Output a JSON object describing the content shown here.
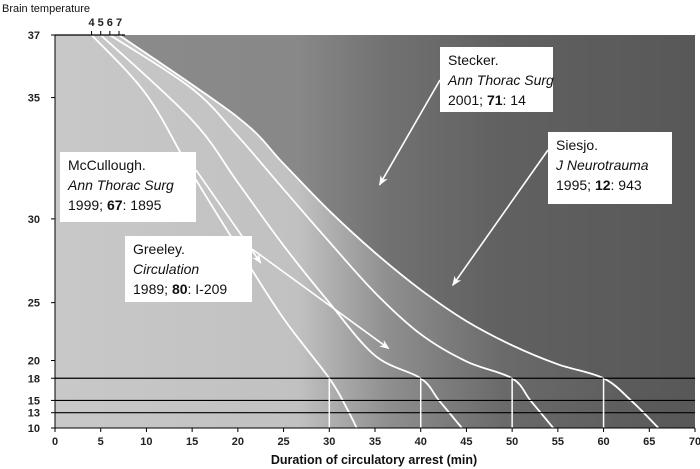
{
  "chart_data": {
    "type": "line",
    "title": "",
    "xlabel": "Duration of circulatory arrest (min)",
    "ylabel": "Brain temperature",
    "xlim": [
      0,
      70
    ],
    "ylim": [
      10,
      37
    ],
    "y_scale": "exponential (temperature axis compressed toward low values)",
    "x_ticks": [
      0,
      5,
      10,
      15,
      20,
      25,
      30,
      35,
      40,
      45,
      50,
      55,
      60,
      65,
      70
    ],
    "y_ticks": [
      10,
      13,
      15,
      18,
      20,
      25,
      30,
      35,
      37
    ],
    "top_ticks": [
      "4",
      "5",
      "6",
      "7"
    ],
    "top_tick_x": [
      4,
      5,
      6,
      7
    ],
    "horizontal_reference_lines": [
      18,
      15,
      13
    ],
    "vertical_reference_lines": [
      {
        "x": 30,
        "from_y": 10,
        "to_y": 18
      },
      {
        "x": 40,
        "from_y": 10,
        "to_y": 18
      },
      {
        "x": 50,
        "from_y": 10,
        "to_y": 18
      },
      {
        "x": 60,
        "from_y": 10,
        "to_y": 18
      }
    ],
    "series": [
      {
        "values": [
          [
            4,
            37
          ],
          [
            10,
            35.1
          ],
          [
            15,
            32.1
          ],
          [
            20,
            28.5
          ],
          [
            25,
            23.8
          ],
          [
            30,
            18
          ],
          [
            32,
            13.5
          ],
          [
            33,
            10
          ]
        ]
      },
      {
        "values": [
          [
            5,
            37
          ],
          [
            15,
            34.2
          ],
          [
            20,
            31.7
          ],
          [
            25,
            28.6
          ],
          [
            30,
            25
          ],
          [
            35,
            20.5
          ],
          [
            40,
            18
          ],
          [
            42,
            15
          ],
          [
            44.5,
            10
          ]
        ]
      },
      {
        "values": [
          [
            6,
            37
          ],
          [
            15,
            35.3
          ],
          [
            20,
            33.6
          ],
          [
            25,
            31.4
          ],
          [
            30,
            28.8
          ],
          [
            35,
            25.7
          ],
          [
            40,
            22.5
          ],
          [
            45,
            19.9
          ],
          [
            50,
            18
          ],
          [
            52,
            15
          ],
          [
            54.5,
            10
          ]
        ]
      },
      {
        "values": [
          [
            7,
            37
          ],
          [
            20,
            34.3
          ],
          [
            25,
            32.5
          ],
          [
            30,
            30.4
          ],
          [
            35,
            28.2
          ],
          [
            40,
            25.9
          ],
          [
            45,
            23.6
          ],
          [
            50,
            21.5
          ],
          [
            55,
            19.6
          ],
          [
            60,
            18
          ],
          [
            63,
            15
          ],
          [
            66,
            10
          ]
        ]
      }
    ],
    "annotations": [
      {
        "line1": "Stecker.",
        "line2": "Ann Thorac Surg",
        "line3_pre": "2001; ",
        "line3_bold": "71",
        "line3_post": ": 14",
        "arrow_to": [
          35.5,
          31.6
        ]
      },
      {
        "line1": "Siesjo.",
        "line2": "J Neurotrauma",
        "line3_pre": "1995; ",
        "line3_bold": "12",
        "line3_post": ": 943",
        "arrow_to": [
          43.5,
          26.2
        ]
      },
      {
        "line1": "McCullough.",
        "line2": "Ann Thorac Surg",
        "line3_pre": "1999; ",
        "line3_bold": "67",
        "line3_post": ": 1895",
        "arrow_to": [
          22.5,
          27.6
        ]
      },
      {
        "line1": "Greeley.",
        "line2": "Circulation",
        "line3_pre": "1989; ",
        "line3_bold": "80",
        "line3_post": ": I-209",
        "arrow_to": [
          36.5,
          21.2
        ]
      }
    ],
    "grid": false,
    "legend": "none",
    "colors": {
      "curve": "#ffffff",
      "reference_line": "#000000",
      "left_region": "#c8c8c8",
      "right_region": "#5a5a5a",
      "annotation_box": "#ffffff"
    }
  }
}
